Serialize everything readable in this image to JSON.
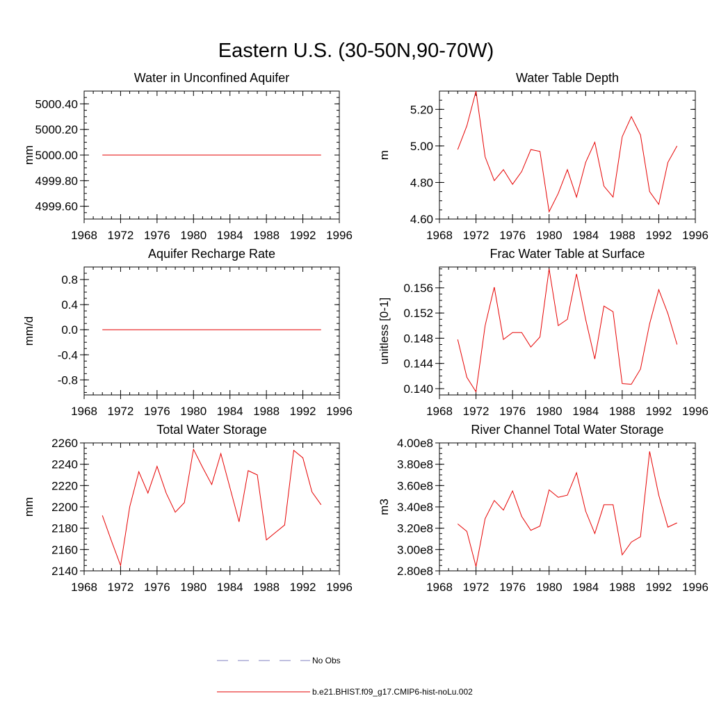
{
  "title": "Eastern U.S. (30-50N,90-70W)",
  "legend": [
    {
      "label": "No Obs",
      "color": "#8080c0",
      "style": "dashed"
    },
    {
      "label": "b.e21.BHIST.f09_g17.CMIP6-hist-noLu.002",
      "color": "#e60000",
      "style": "solid"
    }
  ],
  "chart_data": [
    {
      "type": "line",
      "title": "Water in Unconfined Aquifer",
      "ylabel": "mm",
      "xlim": [
        1968,
        1996
      ],
      "xticks": [
        "1968",
        "1972",
        "1976",
        "1980",
        "1984",
        "1988",
        "1992",
        "1996"
      ],
      "ylim": [
        4999.5,
        5000.5
      ],
      "yticks": [
        {
          "v": 4999.6,
          "label": "4999.60"
        },
        {
          "v": 4999.8,
          "label": "4999.80"
        },
        {
          "v": 5000.0,
          "label": "5000.00"
        },
        {
          "v": 5000.2,
          "label": "5000.20"
        },
        {
          "v": 5000.4,
          "label": "5000.40"
        }
      ],
      "x": [
        1970,
        1971,
        1972,
        1973,
        1974,
        1975,
        1976,
        1977,
        1978,
        1979,
        1980,
        1981,
        1982,
        1983,
        1984,
        1985,
        1986,
        1987,
        1988,
        1989,
        1990,
        1991,
        1992,
        1993,
        1994
      ],
      "series": [
        {
          "name": "b.e21.BHIST.f09_g17.CMIP6-hist-noLu.002",
          "values": [
            5000,
            5000,
            5000,
            5000,
            5000,
            5000,
            5000,
            5000,
            5000,
            5000,
            5000,
            5000,
            5000,
            5000,
            5000,
            5000,
            5000,
            5000,
            5000,
            5000,
            5000,
            5000,
            5000,
            5000,
            5000
          ]
        }
      ]
    },
    {
      "type": "line",
      "title": "Water Table Depth",
      "ylabel": "m",
      "xlim": [
        1968,
        1996
      ],
      "xticks": [
        "1968",
        "1972",
        "1976",
        "1980",
        "1984",
        "1988",
        "1992",
        "1996"
      ],
      "ylim": [
        4.6,
        5.3
      ],
      "yticks": [
        {
          "v": 4.6,
          "label": "4.60"
        },
        {
          "v": 4.8,
          "label": "4.80"
        },
        {
          "v": 5.0,
          "label": "5.00"
        },
        {
          "v": 5.2,
          "label": "5.20"
        }
      ],
      "x": [
        1970,
        1971,
        1972,
        1973,
        1974,
        1975,
        1976,
        1977,
        1978,
        1979,
        1980,
        1981,
        1982,
        1983,
        1984,
        1985,
        1986,
        1987,
        1988,
        1989,
        1990,
        1991,
        1992,
        1993,
        1994
      ],
      "series": [
        {
          "name": "b.e21.BHIST.f09_g17.CMIP6-hist-noLu.002",
          "values": [
            4.98,
            5.11,
            5.3,
            4.94,
            4.81,
            4.87,
            4.79,
            4.86,
            4.98,
            4.97,
            4.64,
            4.74,
            4.87,
            4.72,
            4.91,
            5.02,
            4.78,
            4.72,
            5.05,
            5.16,
            5.06,
            4.75,
            4.68,
            4.91,
            5.0
          ]
        }
      ]
    },
    {
      "type": "line",
      "title": "Aquifer Recharge Rate",
      "ylabel": "mm/d",
      "xlim": [
        1968,
        1996
      ],
      "xticks": [
        "1968",
        "1972",
        "1976",
        "1980",
        "1984",
        "1988",
        "1992",
        "1996"
      ],
      "ylim": [
        -1.04,
        1.0
      ],
      "yticks": [
        {
          "v": -0.8,
          "label": "-0.8"
        },
        {
          "v": -0.4,
          "label": "-0.4"
        },
        {
          "v": 0.0,
          "label": "0.0"
        },
        {
          "v": 0.4,
          "label": "0.4"
        },
        {
          "v": 0.8,
          "label": "0.8"
        }
      ],
      "x": [
        1970,
        1971,
        1972,
        1973,
        1974,
        1975,
        1976,
        1977,
        1978,
        1979,
        1980,
        1981,
        1982,
        1983,
        1984,
        1985,
        1986,
        1987,
        1988,
        1989,
        1990,
        1991,
        1992,
        1993,
        1994
      ],
      "series": [
        {
          "name": "b.e21.BHIST.f09_g17.CMIP6-hist-noLu.002",
          "values": [
            0,
            0,
            0,
            0,
            0,
            0,
            0,
            0,
            0,
            0,
            0,
            0,
            0,
            0,
            0,
            0,
            0,
            0,
            0,
            0,
            0,
            0,
            0,
            0,
            0
          ]
        }
      ]
    },
    {
      "type": "line",
      "title": "Frac Water Table at Surface",
      "ylabel": "unitless [0-1]",
      "xlim": [
        1968,
        1996
      ],
      "xticks": [
        "1968",
        "1972",
        "1976",
        "1980",
        "1984",
        "1988",
        "1992",
        "1996"
      ],
      "ylim": [
        0.139,
        0.1593
      ],
      "yticks": [
        {
          "v": 0.14,
          "label": "0.140"
        },
        {
          "v": 0.144,
          "label": "0.144"
        },
        {
          "v": 0.148,
          "label": "0.148"
        },
        {
          "v": 0.152,
          "label": "0.152"
        },
        {
          "v": 0.156,
          "label": "0.156"
        }
      ],
      "x": [
        1970,
        1971,
        1972,
        1973,
        1974,
        1975,
        1976,
        1977,
        1978,
        1979,
        1980,
        1981,
        1982,
        1983,
        1984,
        1985,
        1986,
        1987,
        1988,
        1989,
        1990,
        1991,
        1992,
        1993,
        1994
      ],
      "series": [
        {
          "name": "b.e21.BHIST.f09_g17.CMIP6-hist-noLu.002",
          "values": [
            0.1478,
            0.1418,
            0.1395,
            0.15,
            0.1561,
            0.1478,
            0.1489,
            0.1489,
            0.1466,
            0.1482,
            0.159,
            0.15,
            0.151,
            0.1582,
            0.151,
            0.1447,
            0.1531,
            0.1522,
            0.1408,
            0.1407,
            0.1431,
            0.1503,
            0.1557,
            0.1519,
            0.147
          ]
        }
      ]
    },
    {
      "type": "line",
      "title": "Total Water Storage",
      "ylabel": "mm",
      "xlim": [
        1968,
        1996
      ],
      "xticks": [
        "1968",
        "1972",
        "1976",
        "1980",
        "1984",
        "1988",
        "1992",
        "1996"
      ],
      "ylim": [
        2140,
        2260
      ],
      "yticks": [
        {
          "v": 2140,
          "label": "2140"
        },
        {
          "v": 2160,
          "label": "2160"
        },
        {
          "v": 2180,
          "label": "2180"
        },
        {
          "v": 2200,
          "label": "2200"
        },
        {
          "v": 2220,
          "label": "2220"
        },
        {
          "v": 2240,
          "label": "2240"
        },
        {
          "v": 2260,
          "label": "2260"
        }
      ],
      "x": [
        1970,
        1971,
        1972,
        1973,
        1974,
        1975,
        1976,
        1977,
        1978,
        1979,
        1980,
        1981,
        1982,
        1983,
        1984,
        1985,
        1986,
        1987,
        1988,
        1989,
        1990,
        1991,
        1992,
        1993,
        1994
      ],
      "series": [
        {
          "name": "b.e21.BHIST.f09_g17.CMIP6-hist-noLu.002",
          "values": [
            2192,
            2168,
            2145,
            2200,
            2233,
            2213,
            2238,
            2213,
            2195,
            2204,
            2254,
            2237,
            2221,
            2250,
            2218,
            2186,
            2234,
            2230,
            2169,
            2176,
            2183,
            2253,
            2246,
            2214,
            2202
          ]
        }
      ]
    },
    {
      "type": "line",
      "title": "River Channel Total Water Storage",
      "ylabel": "m3",
      "xlim": [
        1968,
        1996
      ],
      "xticks": [
        "1968",
        "1972",
        "1976",
        "1980",
        "1984",
        "1988",
        "1992",
        "1996"
      ],
      "ylim": [
        280000000.0,
        400000000.0
      ],
      "yticks": [
        {
          "v": 280000000.0,
          "label": "2.80e8"
        },
        {
          "v": 300000000.0,
          "label": "3.00e8"
        },
        {
          "v": 320000000.0,
          "label": "3.20e8"
        },
        {
          "v": 340000000.0,
          "label": "3.40e8"
        },
        {
          "v": 360000000.0,
          "label": "3.60e8"
        },
        {
          "v": 380000000.0,
          "label": "3.80e8"
        },
        {
          "v": 400000000.0,
          "label": "4.00e8"
        }
      ],
      "x": [
        1970,
        1971,
        1972,
        1973,
        1974,
        1975,
        1976,
        1977,
        1978,
        1979,
        1980,
        1981,
        1982,
        1983,
        1984,
        1985,
        1986,
        1987,
        1988,
        1989,
        1990,
        1991,
        1992,
        1993,
        1994
      ],
      "series": [
        {
          "name": "b.e21.BHIST.f09_g17.CMIP6-hist-noLu.002",
          "values": [
            324000000.0,
            317000000.0,
            284000000.0,
            329000000.0,
            346000000.0,
            337000000.0,
            355000000.0,
            331000000.0,
            318000000.0,
            322000000.0,
            356000000.0,
            349000000.0,
            351000000.0,
            372000000.0,
            336000000.0,
            315000000.0,
            342000000.0,
            342000000.0,
            295000000.0,
            307000000.0,
            312000000.0,
            392000000.0,
            351000000.0,
            321000000.0,
            325000000.0
          ]
        }
      ]
    }
  ]
}
